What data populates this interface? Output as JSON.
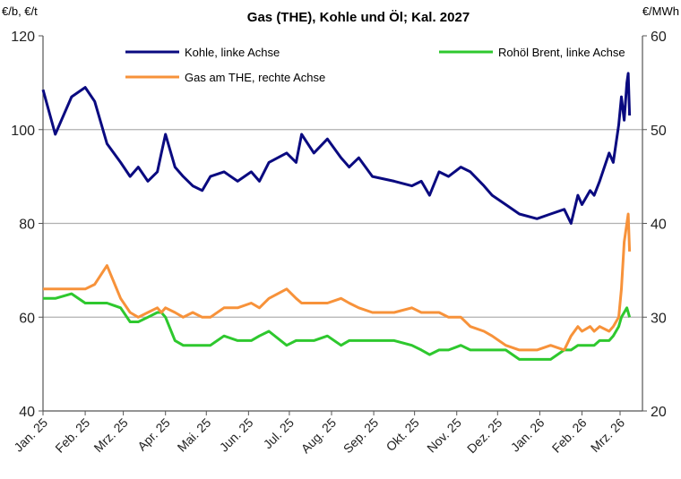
{
  "chart_data": {
    "type": "line",
    "title": "Gas (THE), Kohle und Öl; Kal. 2027",
    "ylabel_left": "€/b, €/t",
    "ylabel_right": "€/MWh",
    "ylim_left": [
      40,
      120
    ],
    "ylim_right": [
      20,
      60
    ],
    "yticks_left": [
      40,
      60,
      80,
      100,
      120
    ],
    "yticks_right": [
      20,
      30,
      40,
      50,
      60
    ],
    "grid": "horizontal",
    "legend_placement": "top",
    "xticks": [
      {
        "date": "2025-01-01",
        "label": "Jan. 25"
      },
      {
        "date": "2025-02-01",
        "label": "Feb. 25"
      },
      {
        "date": "2025-03-01",
        "label": "Mrz. 25"
      },
      {
        "date": "2025-04-01",
        "label": "Apr. 25"
      },
      {
        "date": "2025-05-01",
        "label": "Mai. 25"
      },
      {
        "date": "2025-06-01",
        "label": "Jun. 25"
      },
      {
        "date": "2025-07-01",
        "label": "Jul. 25"
      },
      {
        "date": "2025-08-01",
        "label": "Aug. 25"
      },
      {
        "date": "2025-09-01",
        "label": "Sep. 25"
      },
      {
        "date": "2025-10-01",
        "label": "Okt. 25"
      },
      {
        "date": "2025-11-01",
        "label": "Nov. 25"
      },
      {
        "date": "2025-12-01",
        "label": "Dez. 25"
      },
      {
        "date": "2026-01-01",
        "label": "Jan. 26"
      },
      {
        "date": "2026-02-01",
        "label": "Feb. 26"
      },
      {
        "date": "2026-03-01",
        "label": "Mrz. 26"
      }
    ],
    "x": [
      "2025-01-01",
      "2025-01-10",
      "2025-01-22",
      "2025-02-01",
      "2025-02-08",
      "2025-02-17",
      "2025-02-27",
      "2025-03-06",
      "2025-03-12",
      "2025-03-19",
      "2025-03-26",
      "2025-03-29",
      "2025-04-01",
      "2025-04-08",
      "2025-04-14",
      "2025-04-21",
      "2025-04-28",
      "2025-05-04",
      "2025-05-14",
      "2025-05-24",
      "2025-06-03",
      "2025-06-09",
      "2025-06-16",
      "2025-06-29",
      "2025-07-06",
      "2025-07-10",
      "2025-07-19",
      "2025-07-29",
      "2025-08-08",
      "2025-08-14",
      "2025-08-21",
      "2025-08-31",
      "2025-09-16",
      "2025-09-29",
      "2025-10-06",
      "2025-10-12",
      "2025-10-19",
      "2025-10-26",
      "2025-11-04",
      "2025-11-11",
      "2025-11-21",
      "2025-11-27",
      "2025-12-07",
      "2025-12-17",
      "2025-12-30",
      "2026-01-09",
      "2026-01-19",
      "2026-01-24",
      "2026-01-29",
      "2026-02-01",
      "2026-02-07",
      "2026-02-10",
      "2026-02-14",
      "2026-02-21",
      "2026-02-24",
      "2026-02-28",
      "2026-03-02",
      "2026-03-04",
      "2026-03-06",
      "2026-03-07",
      "2026-03-08"
    ],
    "series": [
      {
        "name": "Kohle, linke Achse",
        "axis": "left",
        "color": "#0a0a80",
        "values": [
          108.5,
          99,
          107,
          109,
          106,
          97,
          93,
          90,
          92,
          89,
          91,
          95,
          99,
          92,
          90,
          88,
          87,
          90,
          91,
          89,
          91,
          89,
          93,
          95,
          93,
          99,
          95,
          98,
          94,
          92,
          94,
          90,
          89,
          88,
          89,
          86,
          91,
          90,
          92,
          91,
          88,
          86,
          84,
          82,
          81,
          82,
          83,
          80,
          86,
          84,
          87,
          86,
          89,
          95,
          93,
          101,
          107,
          102,
          110,
          112,
          103
        ]
      },
      {
        "name": "Rohöl Brent, linke Achse",
        "axis": "left",
        "color": "#2ec82e",
        "values": [
          64,
          64,
          65,
          63,
          63,
          63,
          62,
          59,
          59,
          60,
          61,
          61,
          60,
          55,
          54,
          54,
          54,
          54,
          56,
          55,
          55,
          56,
          57,
          54,
          55,
          55,
          55,
          56,
          54,
          55,
          55,
          55,
          55,
          54,
          53,
          52,
          53,
          53,
          54,
          53,
          53,
          53,
          53,
          51,
          51,
          51,
          53,
          53,
          54,
          54,
          54,
          54,
          55,
          55,
          56,
          58,
          60,
          61,
          62,
          61,
          60
        ]
      },
      {
        "name": "Gas am THE, rechte Achse",
        "axis": "right",
        "color": "#f7923a",
        "values": [
          33,
          33,
          33,
          33,
          33.5,
          35.5,
          32,
          30.5,
          30,
          30.5,
          31,
          30.5,
          31,
          30.5,
          30,
          30.5,
          30,
          30,
          31,
          31,
          31.5,
          31,
          32,
          33,
          32,
          31.5,
          31.5,
          31.5,
          32,
          31.5,
          31,
          30.5,
          30.5,
          31,
          30.5,
          30.5,
          30.5,
          30,
          30,
          29,
          28.5,
          28,
          27,
          26.5,
          26.5,
          27,
          26.5,
          28,
          29,
          28.5,
          29,
          28.5,
          29,
          28.5,
          29,
          30,
          33,
          38,
          40,
          41,
          37
        ]
      }
    ]
  }
}
